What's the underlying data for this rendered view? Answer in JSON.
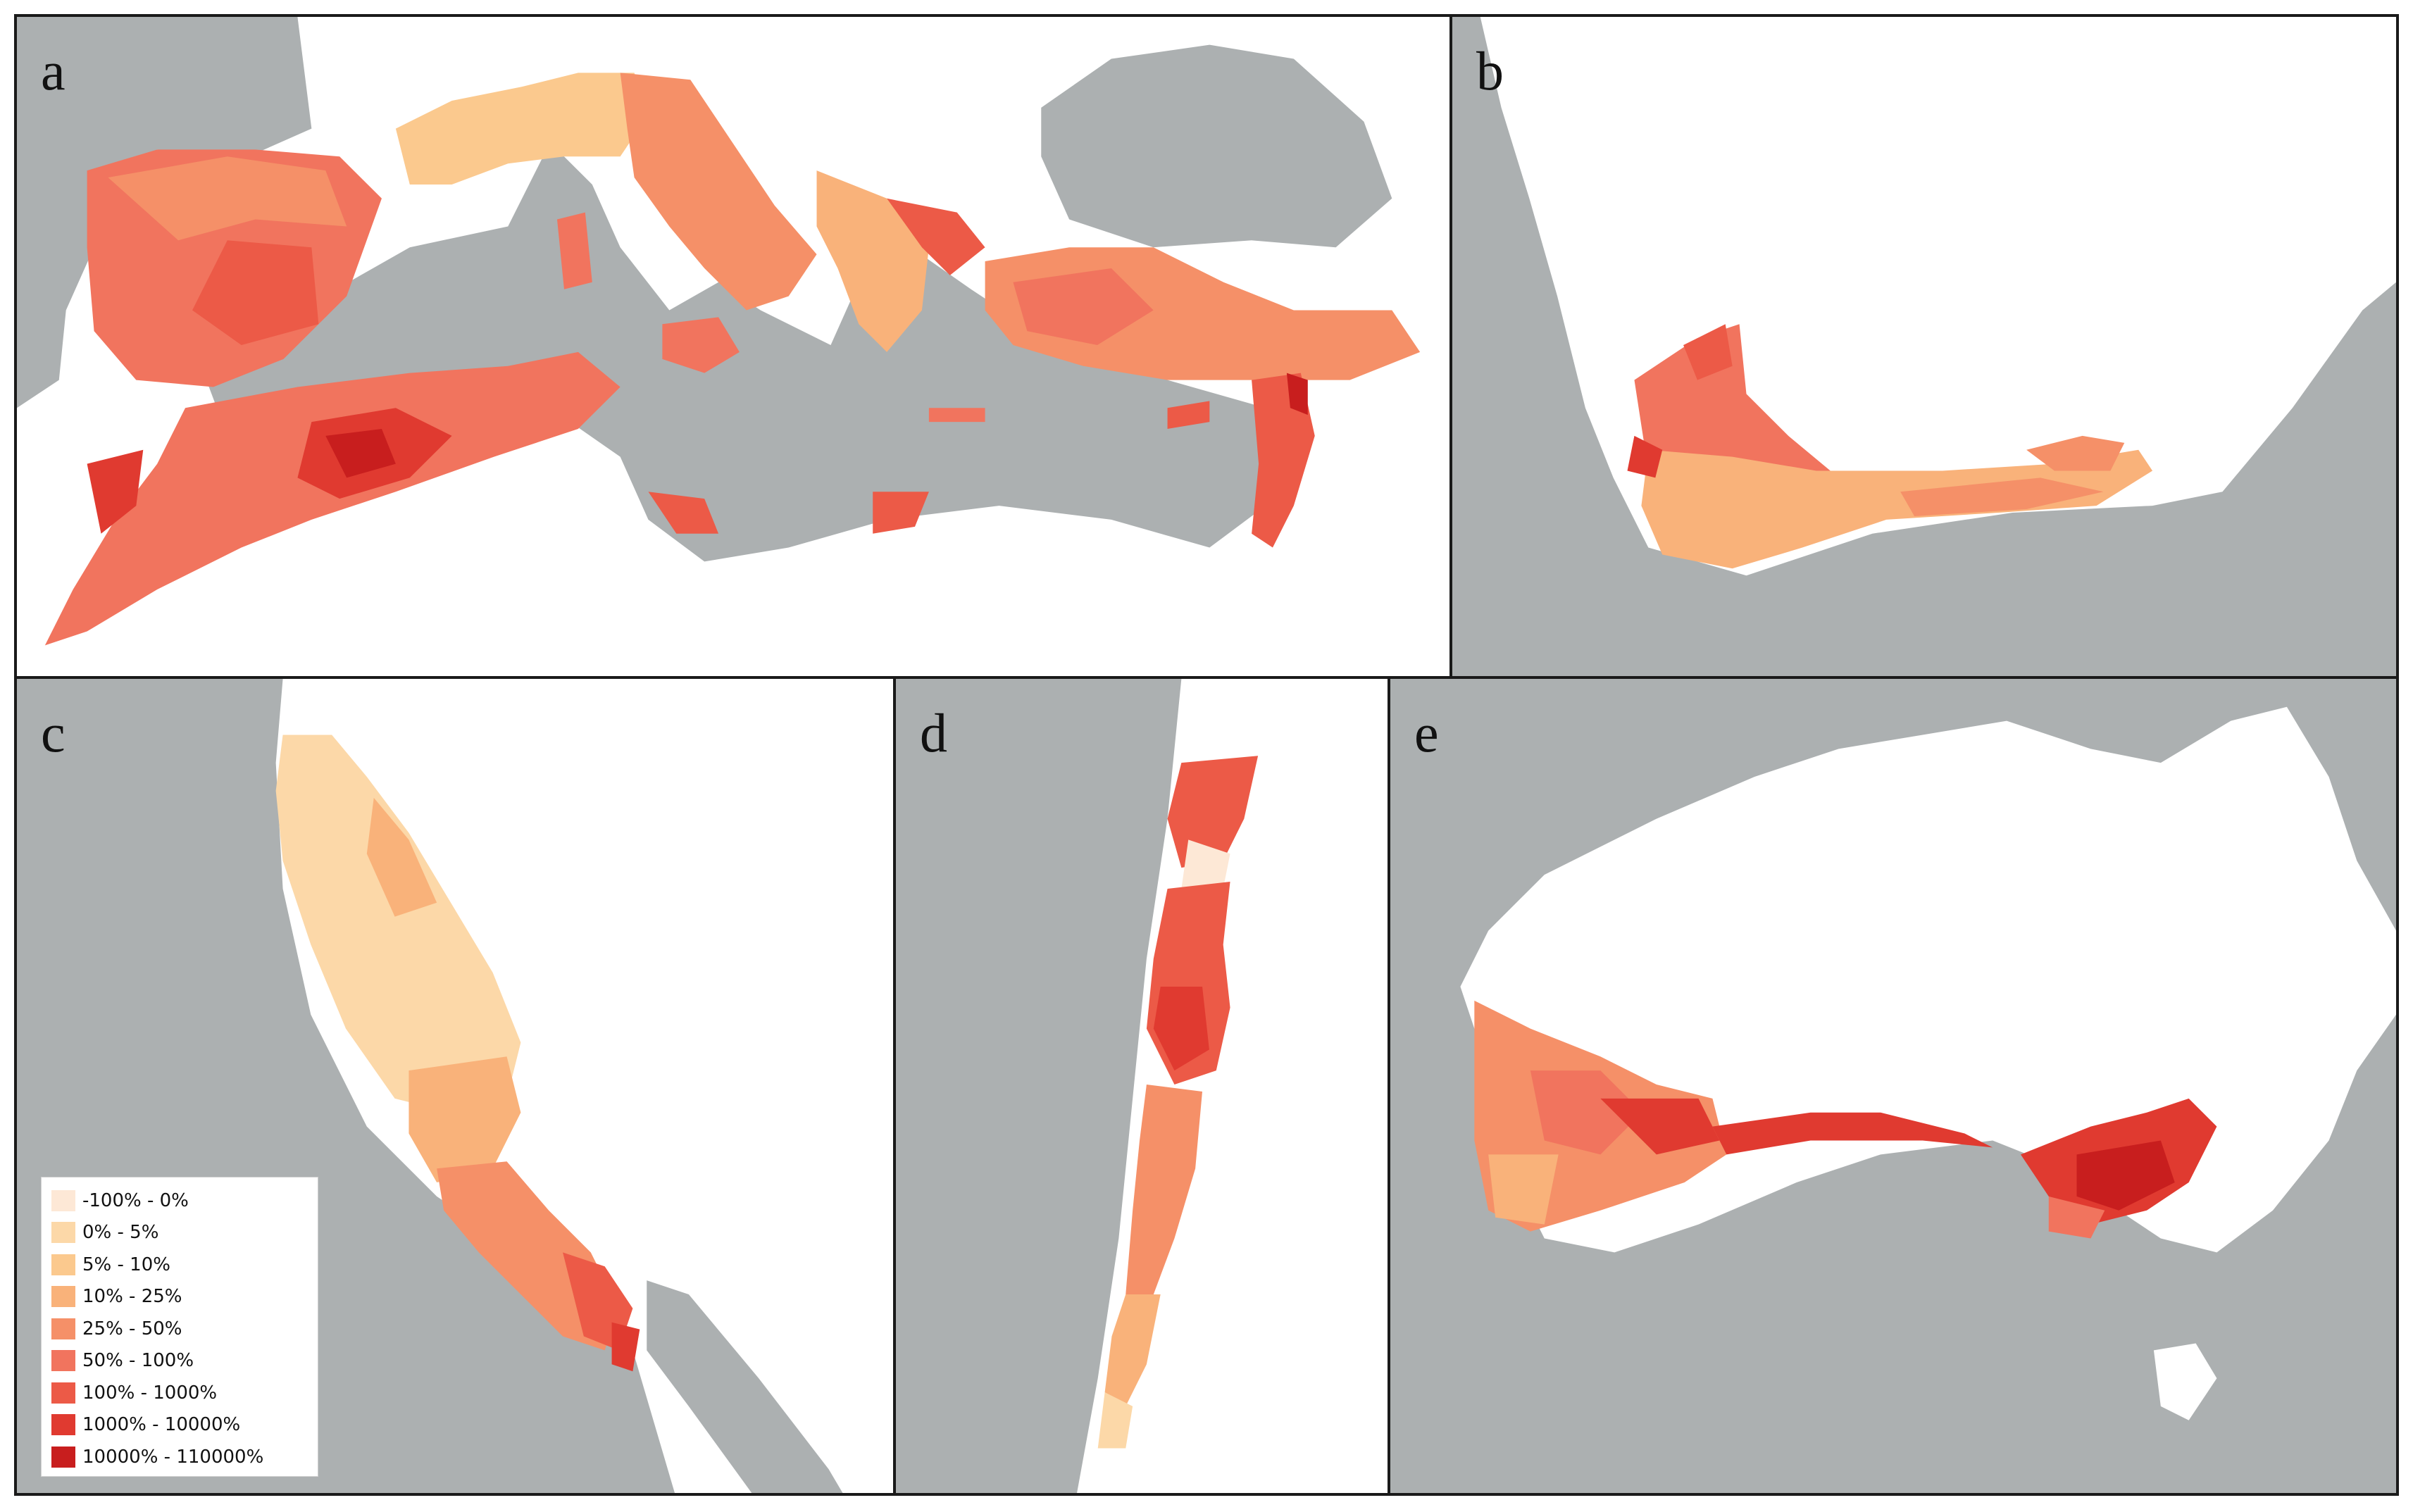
{
  "panels": {
    "a": {
      "letter": "a"
    },
    "b": {
      "letter": "b"
    },
    "c": {
      "letter": "c"
    },
    "d": {
      "letter": "d"
    },
    "e": {
      "letter": "e"
    }
  },
  "colors": {
    "land": "#acb0b1",
    "background": "#ffffff",
    "border": "#1a1a1a",
    "scale": [
      "#fde8d6",
      "#fcd8a8",
      "#fbc98e",
      "#f9b27a",
      "#f59068",
      "#f1745e",
      "#ec5a47",
      "#e03a30",
      "#c81e1e"
    ]
  },
  "legend": {
    "title": "",
    "items": [
      {
        "label": "-100% - 0%",
        "color": "#fde8d6"
      },
      {
        "label": "0% - 5%",
        "color": "#fcd8a8"
      },
      {
        "label": "5% - 10%",
        "color": "#fbc98e"
      },
      {
        "label": "10% - 25%",
        "color": "#f9b27a"
      },
      {
        "label": "25% - 50%",
        "color": "#f59068"
      },
      {
        "label": "50% - 100%",
        "color": "#f1745e"
      },
      {
        "label": "100% - 1000%",
        "color": "#ec5a47"
      },
      {
        "label": "1000% - 10000%",
        "color": "#e03a30"
      },
      {
        "label": "10000% - 110000%",
        "color": "#c81e1e"
      }
    ]
  }
}
